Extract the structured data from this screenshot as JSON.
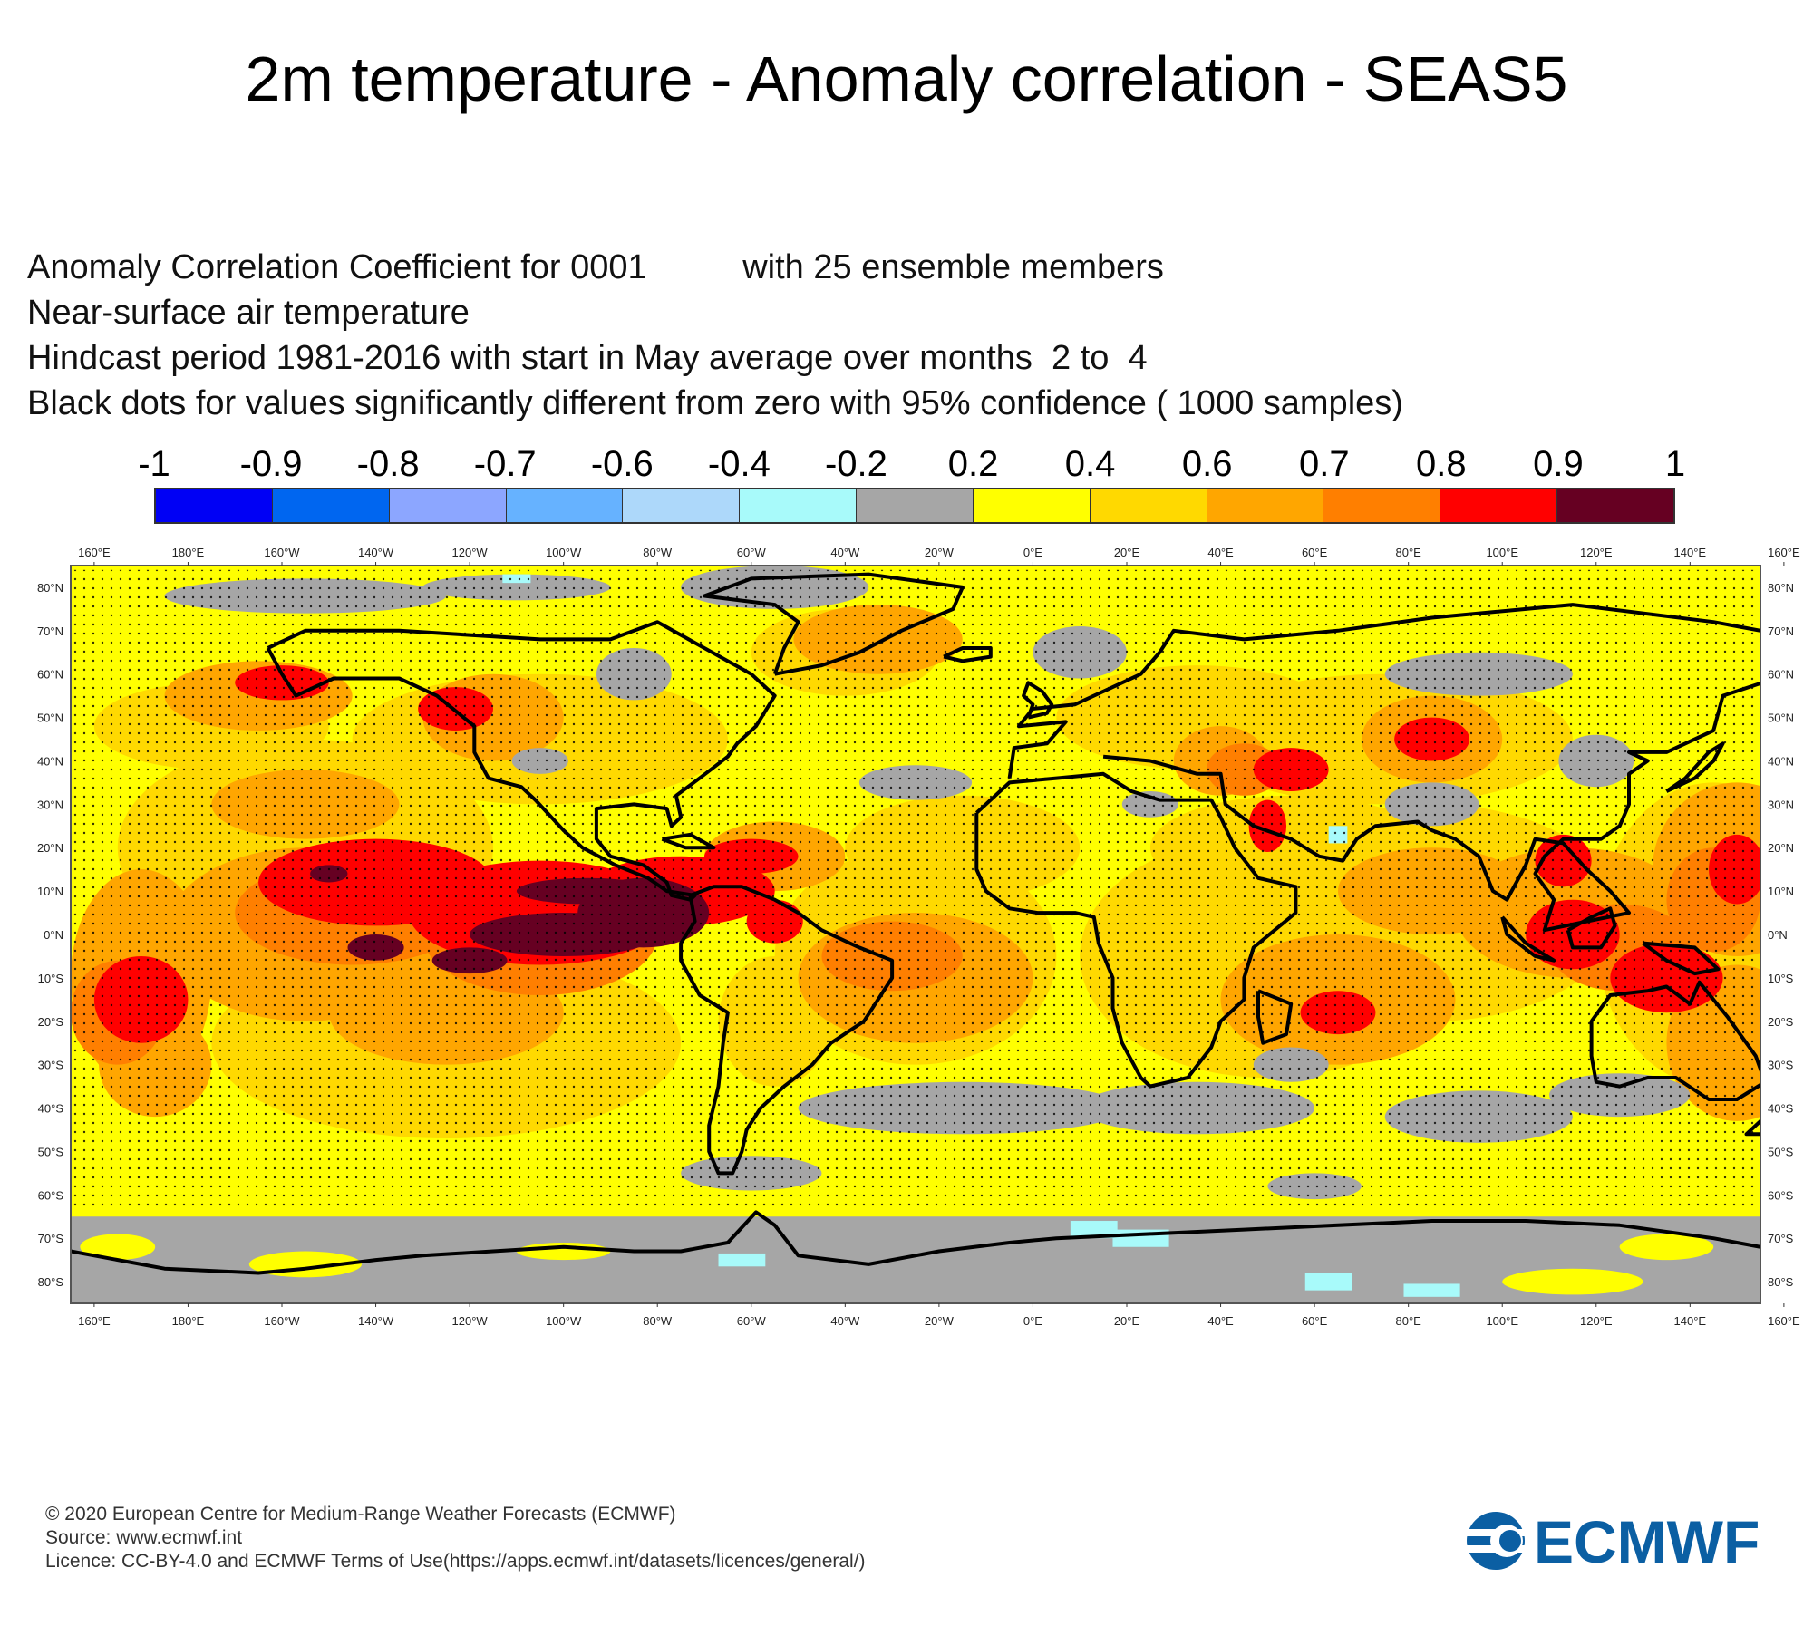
{
  "header": {
    "title": "2m temperature - Anomaly correlation - SEAS5"
  },
  "subtitle": {
    "line1": "Anomaly Correlation Coefficient for 0001          with 25 ensemble members",
    "line2": "Near-surface air temperature",
    "line3": "Hindcast period 1981-2016 with start in May average over months  2 to  4",
    "line4": "Black dots for values significantly different from zero with 95% confidence ( 1000 samples)"
  },
  "colorbar": {
    "labels": [
      "-1",
      "-0.9",
      "-0.8",
      "-0.7",
      "-0.6",
      "-0.4",
      "-0.2",
      "0.2",
      "0.4",
      "0.6",
      "0.7",
      "0.8",
      "0.9",
      "1"
    ],
    "colors": [
      "#0000f5",
      "#0066f0",
      "#8ca6ff",
      "#66b2ff",
      "#add8fa",
      "#a8fafa",
      "#a6a6a6",
      "#ffff00",
      "#ffd900",
      "#ffa600",
      "#ff7f00",
      "#ff0000",
      "#660022"
    ]
  },
  "map": {
    "lon_labels": [
      "160°E",
      "180°E",
      "160°W",
      "140°W",
      "120°W",
      "100°W",
      "80°W",
      "60°W",
      "40°W",
      "20°W",
      "0°E",
      "20°E",
      "40°E",
      "60°E",
      "80°E",
      "100°E",
      "120°E",
      "140°E",
      "160°E"
    ],
    "lat_labels": [
      "80°N",
      "70°N",
      "60°N",
      "50°N",
      "40°N",
      "30°N",
      "20°N",
      "10°N",
      "0°N",
      "10°S",
      "20°S",
      "30°S",
      "40°S",
      "50°S",
      "60°S",
      "70°S",
      "80°S"
    ],
    "lon_range": [
      150,
      510
    ],
    "lat_range": [
      -85,
      85
    ],
    "colors": {
      "gray": "#a6a6a6",
      "yellow": "#ffff00",
      "gold": "#ffd900",
      "orange": "#ffa600",
      "darkorange": "#ff7f00",
      "red": "#ff0000",
      "maroon": "#660022",
      "cyan": "#a8fafa",
      "coast": "#000000"
    }
  },
  "footer": {
    "line1": "© 2020 European Centre for Medium-Range Weather Forecasts (ECMWF)",
    "line2": "Source: www.ecmwf.int",
    "line3": "Licence: CC-BY-4.0 and ECMWF Terms of Use(https://apps.ecmwf.int/datasets/licences/general/)"
  },
  "logo": {
    "text": "ECMWF",
    "color": "#0b5fa3"
  }
}
